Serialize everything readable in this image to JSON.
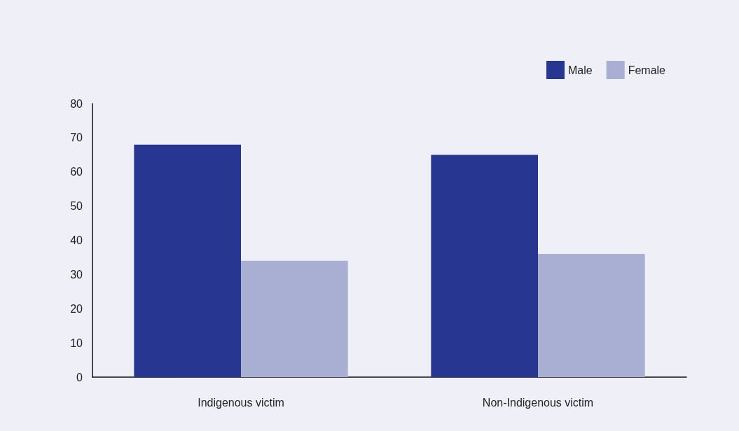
{
  "chart_data": {
    "type": "bar",
    "categories": [
      "Indigenous victim",
      "Non-Indigenous victim"
    ],
    "series": [
      {
        "name": "Male",
        "color": "#273691",
        "values": [
          68,
          65
        ]
      },
      {
        "name": "Female",
        "color": "#a9afd3",
        "values": [
          34,
          36
        ]
      }
    ],
    "ylim": [
      0,
      80
    ],
    "yticks": [
      0,
      10,
      20,
      30,
      40,
      50,
      60,
      70,
      80
    ],
    "grid": false,
    "legend": "top right"
  }
}
